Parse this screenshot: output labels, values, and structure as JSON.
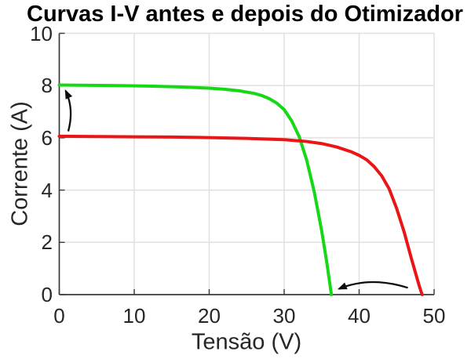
{
  "figure": {
    "background": "#ffffff"
  },
  "chart_data": {
    "type": "line",
    "title": "Curvas I-V antes e depois do Otimizador",
    "xlabel": "Tensão (V)",
    "ylabel": "Corrente (A)",
    "xlim": [
      0,
      50
    ],
    "ylim": [
      0,
      10
    ],
    "x_ticks": [
      0,
      10,
      20,
      30,
      40,
      50
    ],
    "y_ticks": [
      0,
      2,
      4,
      6,
      8,
      10
    ],
    "grid": true,
    "legend": "none",
    "colors": {
      "grid": "#e0e0e0",
      "axis": "#3a3a3a",
      "tick_label": "#262626",
      "title": "#000000",
      "arrow": "#0d0d0d",
      "green_curve": "#16d816",
      "red_curve": "#ea1616"
    },
    "series": [
      {
        "id": "green-curve-depois",
        "color": "#16d816",
        "line_width": 4,
        "isc_a": 8.0,
        "voc_v": 36.3,
        "points": [
          [
            0,
            8.02
          ],
          [
            4,
            8.01
          ],
          [
            8,
            8.0
          ],
          [
            12,
            7.98
          ],
          [
            16,
            7.95
          ],
          [
            20,
            7.9
          ],
          [
            22,
            7.86
          ],
          [
            24,
            7.8
          ],
          [
            26,
            7.7
          ],
          [
            27,
            7.62
          ],
          [
            28,
            7.5
          ],
          [
            29,
            7.33
          ],
          [
            30,
            7.08
          ],
          [
            31,
            6.65
          ],
          [
            32,
            6.05
          ],
          [
            33,
            5.15
          ],
          [
            34,
            3.95
          ],
          [
            35,
            2.45
          ],
          [
            35.7,
            1.2
          ],
          [
            36.3,
            0
          ]
        ]
      },
      {
        "id": "red-curve-antes",
        "color": "#ea1616",
        "line_width": 4,
        "isc_a": 6.05,
        "voc_v": 48.4,
        "points": [
          [
            0,
            6.06
          ],
          [
            5,
            6.05
          ],
          [
            10,
            6.04
          ],
          [
            15,
            6.03
          ],
          [
            20,
            6.01
          ],
          [
            25,
            5.98
          ],
          [
            30,
            5.93
          ],
          [
            33,
            5.86
          ],
          [
            35,
            5.78
          ],
          [
            37,
            5.65
          ],
          [
            39,
            5.46
          ],
          [
            40,
            5.33
          ],
          [
            41,
            5.16
          ],
          [
            42,
            4.9
          ],
          [
            43,
            4.55
          ],
          [
            44,
            4.05
          ],
          [
            45,
            3.3
          ],
          [
            46,
            2.4
          ],
          [
            47,
            1.35
          ],
          [
            48,
            0.35
          ],
          [
            48.4,
            0
          ]
        ]
      }
    ],
    "annotations": [
      {
        "id": "current-increase-arrow",
        "type": "arrow",
        "from": [
          1.2,
          6.25
        ],
        "control": [
          2.0,
          7.1
        ],
        "to": [
          0.85,
          7.8
        ]
      },
      {
        "id": "voltage-decrease-arrow",
        "type": "arrow",
        "from": [
          46.5,
          0.26
        ],
        "control": [
          41.5,
          0.72
        ],
        "to": [
          37.3,
          0.22
        ]
      }
    ]
  }
}
